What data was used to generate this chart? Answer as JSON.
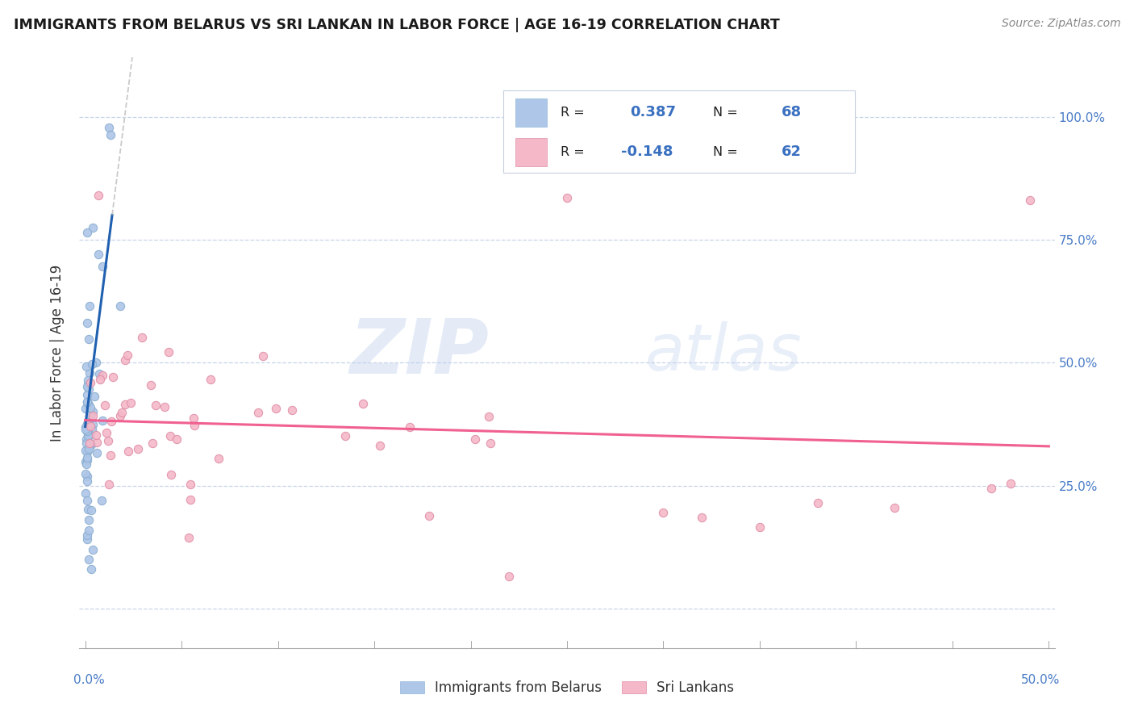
{
  "title": "IMMIGRANTS FROM BELARUS VS SRI LANKAN IN LABOR FORCE | AGE 16-19 CORRELATION CHART",
  "source": "Source: ZipAtlas.com",
  "ylabel": "In Labor Force | Age 16-19",
  "xlim": [
    -0.003,
    0.503
  ],
  "ylim": [
    -0.08,
    1.12
  ],
  "r_belarus": 0.387,
  "n_belarus": 68,
  "r_srilanka": -0.148,
  "n_srilanka": 62,
  "color_belarus": "#aec6e8",
  "color_srilanka": "#f4b8c8",
  "color_belarus_line": "#2060b0",
  "color_srilanka_line": "#f06090",
  "color_trend_ext": "#b8b8b8",
  "background": "#ffffff",
  "watermark_zip": "ZIP",
  "watermark_atlas": "atlas",
  "legend_label_belarus": "Immigrants from Belarus",
  "legend_label_srilanka": "Sri Lankans",
  "ytick_values": [
    0.0,
    0.25,
    0.5,
    0.75,
    1.0
  ],
  "ytick_labels": [
    "",
    "25.0%",
    "50.0%",
    "75.0%",
    "100.0%"
  ],
  "xtick_values": [
    0.0,
    0.5
  ],
  "xtick_labels": [
    "0.0%",
    "50.0%"
  ]
}
